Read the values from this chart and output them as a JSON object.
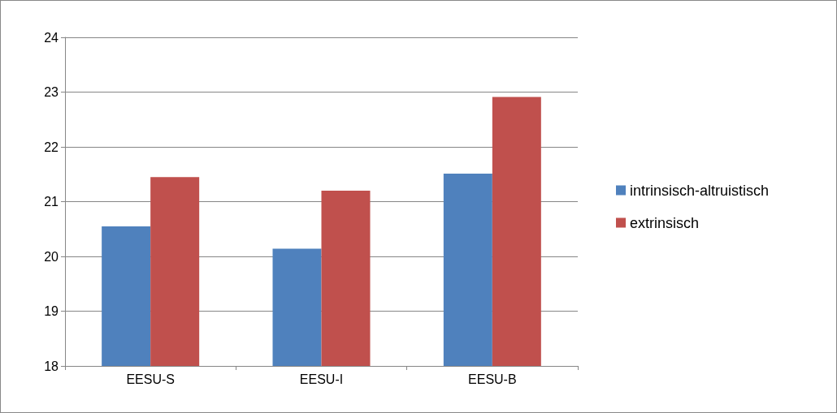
{
  "chart_data": {
    "type": "bar",
    "categories": [
      "EESU-S",
      "EESU-I",
      "EESU-B"
    ],
    "series": [
      {
        "name": "intrinsisch-altruistisch",
        "color": "#4f81bd",
        "values": [
          20.55,
          20.14,
          21.51
        ]
      },
      {
        "name": "extrinsisch",
        "color": "#c0504d",
        "values": [
          21.45,
          21.2,
          22.91
        ]
      }
    ],
    "ylim": [
      18,
      24
    ],
    "yticks": [
      18,
      19,
      20,
      21,
      22,
      23,
      24
    ],
    "grid": "y",
    "legend": "right"
  }
}
